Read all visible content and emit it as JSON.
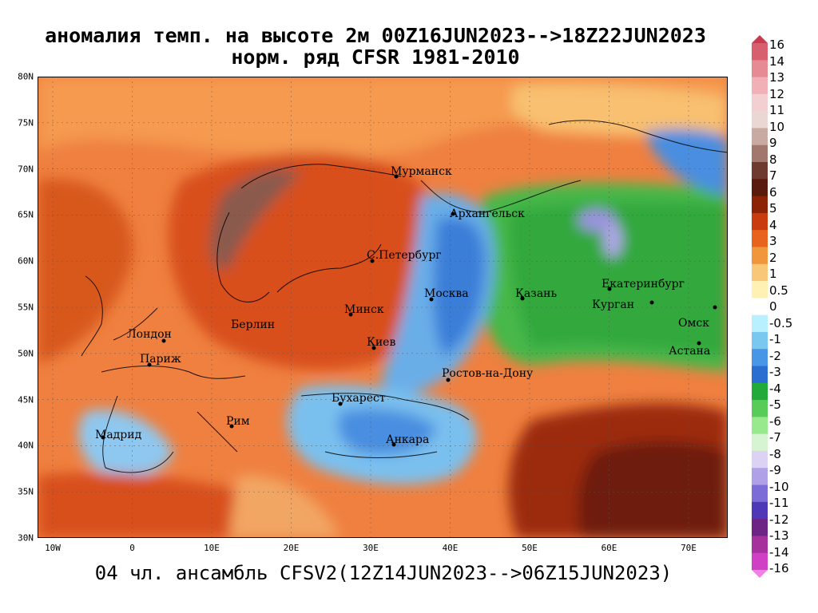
{
  "title": {
    "line1": "аномалия темп. на высоте 2м 00Z16JUN2023-->18Z22JUN2023",
    "line2": "норм. ряд CFSR 1981-2010"
  },
  "footer": "04 чл. ансамбль CFSV2(12Z14JUN2023-->06Z15JUN2023)",
  "axes": {
    "lat_ticks": [
      "80N",
      "75N",
      "70N",
      "65N",
      "60N",
      "55N",
      "50N",
      "45N",
      "40N",
      "35N",
      "30N"
    ],
    "lon_ticks": [
      "10W",
      "0",
      "10E",
      "20E",
      "30E",
      "40E",
      "50E",
      "60E",
      "70E"
    ]
  },
  "colorbar": {
    "labels": [
      "16",
      "14",
      "13",
      "12",
      "11",
      "10",
      "9",
      "8",
      "7",
      "6",
      "5",
      "4",
      "3",
      "2",
      "1",
      "0.5",
      "0",
      "-0.5",
      "-1",
      "-2",
      "-3",
      "-4",
      "-5",
      "-6",
      "-7",
      "-8",
      "-9",
      "-10",
      "-11",
      "-12",
      "-13",
      "-14",
      "-16"
    ],
    "colors": [
      "#c83c50",
      "#d8606e",
      "#e68a94",
      "#f0b0b6",
      "#f4cfd2",
      "#ead6d2",
      "#c8aaa2",
      "#a2786e",
      "#6e3a30",
      "#5a1a0c",
      "#8c2206",
      "#c83c10",
      "#e8641e",
      "#f0963c",
      "#f8c878",
      "#fff0b4",
      "#ffffff",
      "#b8f0ff",
      "#7ac8f0",
      "#4a96e6",
      "#2a6ed2",
      "#22aa3a",
      "#58cc58",
      "#98e88e",
      "#d6f4d2",
      "#dcd2f4",
      "#b0a0e8",
      "#7c6cd8",
      "#4e38b8",
      "#6e2484",
      "#a6309c",
      "#d040c4",
      "#f080e8"
    ]
  },
  "map": {
    "cities": [
      "Мурманск",
      "Архангельск",
      "С.Петербург",
      "Москва",
      "Казань",
      "Екатеринбург",
      "Курган",
      "Омск",
      "Астана",
      "Минск",
      "Киев",
      "Берлин",
      "Лондон",
      "Париж",
      "Мадрид",
      "Рим",
      "Бухарест",
      "Анкара",
      "Ростов-на-Дону"
    ]
  }
}
